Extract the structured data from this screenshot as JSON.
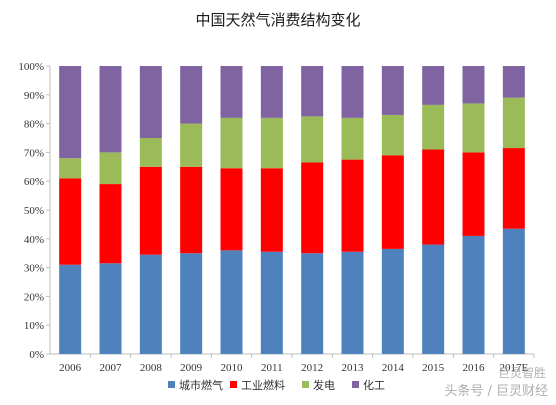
{
  "title": "中国天然气消费结构变化",
  "watermark": {
    "line1": "巨灵智胜",
    "line2": "头条号 / 巨灵财经"
  },
  "colors": {
    "axis": "#bfbfbf"
  },
  "chart_data": {
    "type": "bar",
    "stacked": true,
    "percent": true,
    "categories": [
      "2006",
      "2007",
      "2008",
      "2009",
      "2010",
      "2011",
      "2012",
      "2013",
      "2014",
      "2015",
      "2016",
      "2017E"
    ],
    "ylim": [
      0,
      100
    ],
    "y_ticks": [
      "0%",
      "10%",
      "20%",
      "30%",
      "40%",
      "50%",
      "60%",
      "70%",
      "80%",
      "90%",
      "100%"
    ],
    "legend_position": "bottom",
    "series": [
      {
        "name": "城市燃气",
        "color": "#4f81bd",
        "values": [
          31,
          31.5,
          34.5,
          35,
          36,
          35.5,
          35,
          35.5,
          36.5,
          38,
          41,
          43.5
        ]
      },
      {
        "name": "工业燃料",
        "color": "#ff0000",
        "values": [
          30,
          27.5,
          30.5,
          30,
          28.5,
          29,
          31.5,
          32,
          32.5,
          33,
          29,
          28
        ]
      },
      {
        "name": "发电",
        "color": "#9bbb59",
        "values": [
          7,
          11,
          10,
          15,
          17.5,
          17.5,
          16,
          14.5,
          14,
          15.5,
          17,
          17.5
        ]
      },
      {
        "name": "化工",
        "color": "#8064a2",
        "values": [
          32,
          30,
          25,
          20,
          18,
          18,
          17.5,
          18,
          17,
          13.5,
          13,
          11
        ]
      }
    ]
  }
}
